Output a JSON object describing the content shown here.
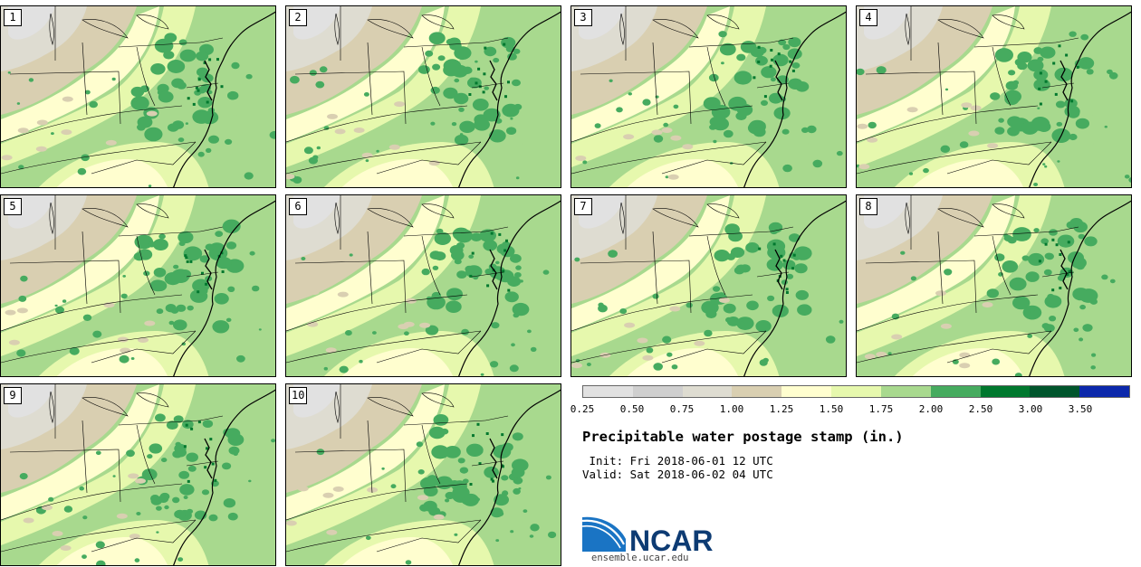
{
  "panels": [
    {
      "label": "1"
    },
    {
      "label": "2"
    },
    {
      "label": "3"
    },
    {
      "label": "4"
    },
    {
      "label": "5"
    },
    {
      "label": "6"
    },
    {
      "label": "7"
    },
    {
      "label": "8"
    },
    {
      "label": "9"
    },
    {
      "label": "10"
    }
  ],
  "colorbar": {
    "colors": [
      "#e1e1e1",
      "#cfcfcf",
      "#dedcd1",
      "#d9cfb1",
      "#fffecf",
      "#e6f8ad",
      "#a8d98e",
      "#46ab5f",
      "#00782e",
      "#00552c",
      "#0b28ab"
    ],
    "ticks": [
      "0.25",
      "0.50",
      "0.75",
      "1.00",
      "1.25",
      "1.50",
      "1.75",
      "2.00",
      "2.50",
      "3.00",
      "3.50"
    ]
  },
  "title": "Precipitable water postage stamp (in.)",
  "init_line": " Init: Fri 2018-06-01 12 UTC",
  "valid_line": "Valid: Sat 2018-06-02 04 UTC",
  "logo": {
    "text": "NCAR",
    "url": "ensemble.ucar.edu"
  }
}
